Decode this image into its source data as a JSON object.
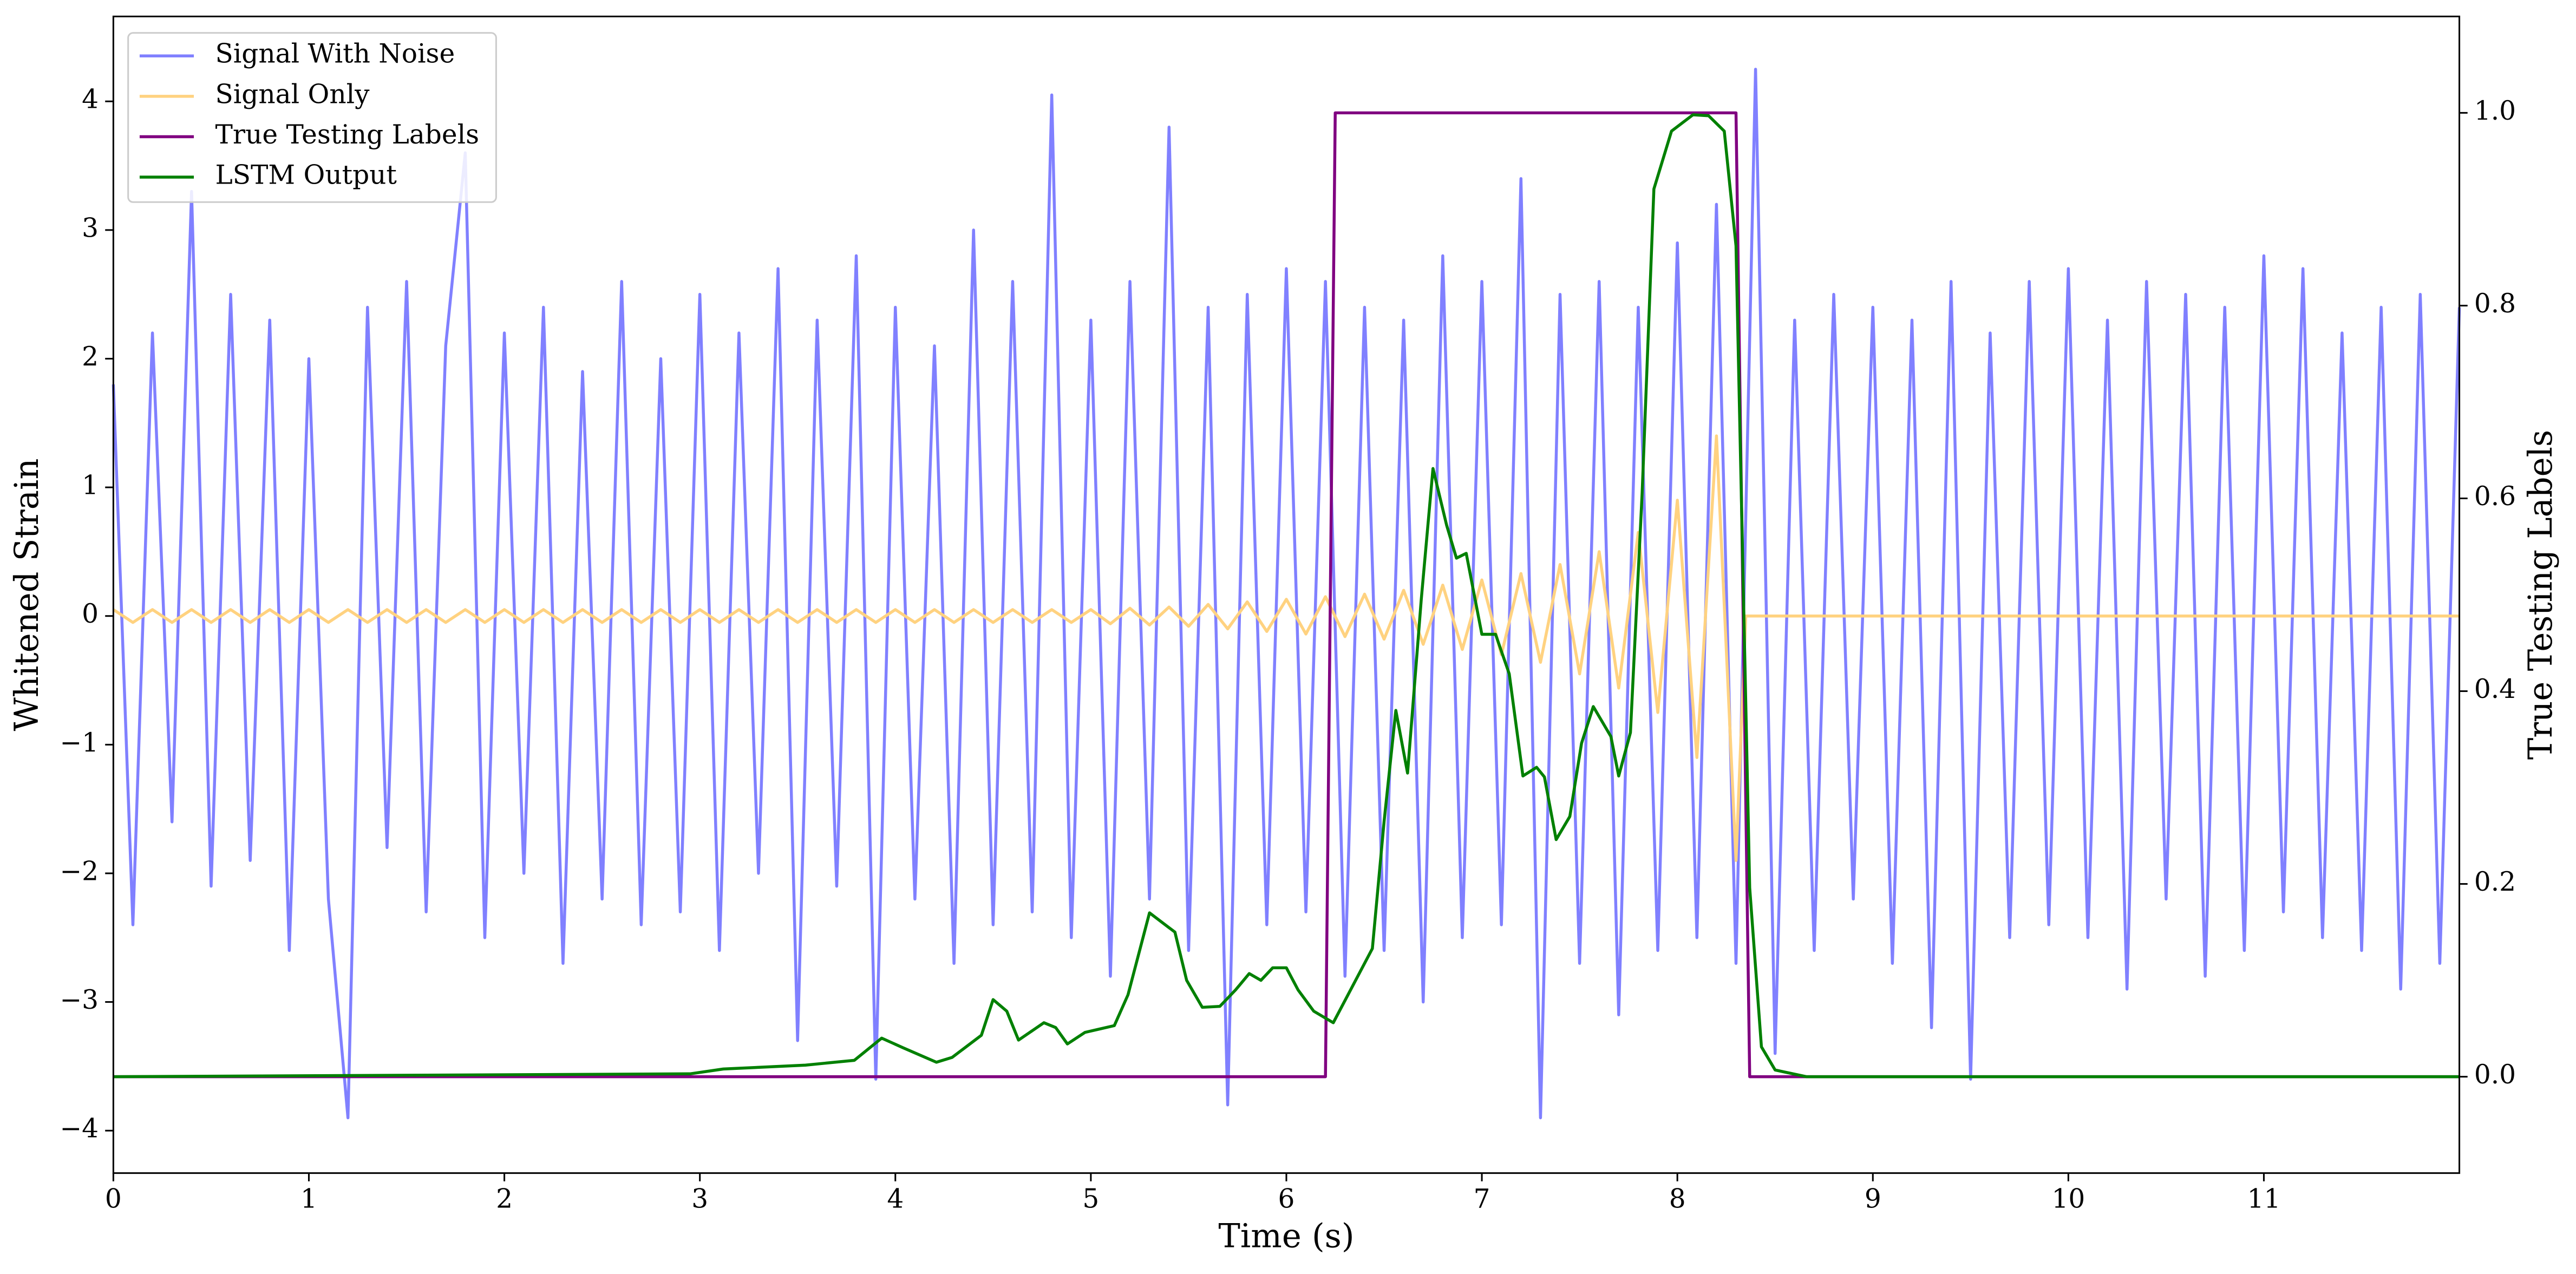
{
  "chart_data": {
    "type": "line",
    "xlabel": "Time (s)",
    "ylabel": "Whitened Strain",
    "y2label": "True Testing Labels",
    "xlim": [
      0,
      12
    ],
    "xticks": [
      0,
      1,
      2,
      3,
      4,
      5,
      6,
      7,
      8,
      9,
      10,
      11
    ],
    "ylim": [
      -4.33,
      4.66
    ],
    "yticks": [
      {
        "value": -4,
        "label": "−4"
      },
      {
        "value": -3,
        "label": "−3"
      },
      {
        "value": -2,
        "label": "−2"
      },
      {
        "value": -1,
        "label": "−1"
      },
      0,
      1,
      2,
      3,
      4
    ],
    "y2lim": [
      -0.1,
      1.1
    ],
    "y2ticks": [
      {
        "value": 0,
        "label": "0.0"
      },
      0.2,
      0.4,
      0.6,
      0.8,
      {
        "value": 1,
        "label": "1.0"
      }
    ],
    "legend": "upper-left",
    "series": [
      {
        "name": "Signal With Noise",
        "color": "#8080ff",
        "x": [
          0,
          0.1,
          0.2,
          0.3,
          0.4,
          0.5,
          0.6,
          0.7,
          0.8,
          0.9,
          1,
          1.1,
          1.2,
          1.3,
          1.4,
          1.5,
          1.6,
          1.7,
          1.8,
          1.9,
          2,
          2.1,
          2.2,
          2.3,
          2.4,
          2.5,
          2.6,
          2.7,
          2.8,
          2.9,
          3,
          3.1,
          3.2,
          3.3,
          3.4,
          3.5,
          3.6,
          3.7,
          3.8,
          3.9,
          4,
          4.1,
          4.2,
          4.3,
          4.4,
          4.5,
          4.6,
          4.7,
          4.8,
          4.9,
          5,
          5.1,
          5.2,
          5.3,
          5.4,
          5.5,
          5.6,
          5.7,
          5.8,
          5.9,
          6,
          6.1,
          6.2,
          6.3,
          6.4,
          6.5,
          6.6,
          6.7,
          6.8,
          6.9,
          7,
          7.1,
          7.2,
          7.3,
          7.4,
          7.5,
          7.6,
          7.7,
          7.8,
          7.9,
          8,
          8.1,
          8.2,
          8.3,
          8.4,
          8.5,
          8.6,
          8.7,
          8.8,
          8.9,
          9,
          9.1,
          9.2,
          9.3,
          9.4,
          9.5,
          9.6,
          9.7,
          9.8,
          9.9,
          10,
          10.1,
          10.2,
          10.3,
          10.4,
          10.5,
          10.6,
          10.7,
          10.8,
          10.9,
          11,
          11.1,
          11.2,
          11.3,
          11.4,
          11.5,
          11.6,
          11.7,
          11.8,
          11.9,
          12
        ],
        "values": [
          1.8,
          -2.4,
          2.2,
          -1.6,
          3.3,
          -2.1,
          2.5,
          -1.9,
          2.3,
          -2.6,
          2.0,
          -2.2,
          -3.9,
          2.4,
          -1.8,
          2.6,
          -2.3,
          2.1,
          3.6,
          -2.5,
          2.2,
          -2.0,
          2.4,
          -2.7,
          1.9,
          -2.2,
          2.6,
          -2.4,
          2.0,
          -2.3,
          2.5,
          -2.6,
          2.2,
          -2.0,
          2.7,
          -3.3,
          2.3,
          -2.1,
          2.8,
          -3.6,
          2.4,
          -2.2,
          2.1,
          -2.7,
          3.0,
          -2.4,
          2.6,
          -2.3,
          4.05,
          -2.5,
          2.3,
          -2.8,
          2.6,
          -2.2,
          3.8,
          -2.6,
          2.4,
          -3.8,
          2.5,
          -2.4,
          2.7,
          -2.3,
          2.6,
          -2.8,
          2.4,
          -2.6,
          2.3,
          -3.0,
          2.8,
          -2.5,
          2.6,
          -2.4,
          3.4,
          -3.9,
          2.5,
          -2.7,
          2.6,
          -3.1,
          2.4,
          -2.6,
          2.9,
          -2.5,
          3.2,
          -2.7,
          4.25,
          -3.4,
          2.3,
          -2.6,
          2.5,
          -2.2,
          2.4,
          -2.7,
          2.3,
          -3.2,
          2.6,
          -3.6,
          2.2,
          -2.5,
          2.6,
          -2.4,
          2.7,
          -2.5,
          2.3,
          -2.9,
          2.6,
          -2.2,
          2.5,
          -2.8,
          2.4,
          -2.6,
          2.8,
          -2.3,
          2.7,
          -2.5,
          2.2,
          -2.6,
          2.4,
          -2.9,
          2.5,
          -2.7,
          2.4
        ]
      },
      {
        "name": "Signal Only",
        "color": "#ffd280",
        "x": [
          0,
          0.1,
          0.2,
          0.3,
          0.4,
          0.5,
          0.6,
          0.7,
          0.8,
          0.9,
          1,
          1.1,
          1.2,
          1.3,
          1.4,
          1.5,
          1.6,
          1.7,
          1.8,
          1.9,
          2,
          2.1,
          2.2,
          2.3,
          2.4,
          2.5,
          2.6,
          2.7,
          2.8,
          2.9,
          3,
          3.1,
          3.2,
          3.3,
          3.4,
          3.5,
          3.6,
          3.7,
          3.8,
          3.9,
          4,
          4.1,
          4.2,
          4.3,
          4.4,
          4.5,
          4.6,
          4.7,
          4.8,
          4.9,
          5,
          5.1,
          5.2,
          5.3,
          5.4,
          5.5,
          5.6,
          5.7,
          5.8,
          5.9,
          6,
          6.1,
          6.2,
          6.3,
          6.4,
          6.5,
          6.6,
          6.7,
          6.8,
          6.9,
          7,
          7.1,
          7.2,
          7.3,
          7.4,
          7.5,
          7.6,
          7.7,
          7.8,
          7.9,
          8,
          8.1,
          8.2,
          8.3,
          8.35,
          12
        ],
        "values": [
          0.05,
          -0.05,
          0.05,
          -0.05,
          0.05,
          -0.05,
          0.05,
          -0.05,
          0.05,
          -0.05,
          0.05,
          -0.05,
          0.05,
          -0.05,
          0.05,
          -0.05,
          0.05,
          -0.05,
          0.05,
          -0.05,
          0.05,
          -0.05,
          0.05,
          -0.05,
          0.05,
          -0.05,
          0.05,
          -0.05,
          0.05,
          -0.05,
          0.05,
          -0.05,
          0.05,
          -0.05,
          0.05,
          -0.05,
          0.05,
          -0.05,
          0.05,
          -0.05,
          0.05,
          -0.05,
          0.05,
          -0.05,
          0.05,
          -0.05,
          0.05,
          -0.05,
          0.05,
          -0.05,
          0.05,
          -0.06,
          0.06,
          -0.07,
          0.07,
          -0.08,
          0.09,
          -0.1,
          0.11,
          -0.12,
          0.13,
          -0.14,
          0.15,
          -0.16,
          0.17,
          -0.18,
          0.2,
          -0.22,
          0.24,
          -0.26,
          0.28,
          -0.3,
          0.33,
          -0.36,
          0.4,
          -0.45,
          0.5,
          -0.56,
          0.65,
          -0.75,
          0.9,
          -1.1,
          1.4,
          -1.9,
          0,
          0
        ]
      },
      {
        "name": "True Testing Labels",
        "color": "#800080",
        "axis": "y2",
        "x": [
          0,
          6.2,
          6.25,
          8.3,
          8.37,
          12
        ],
        "values": [
          0,
          0,
          1,
          1,
          0,
          0
        ]
      },
      {
        "name": "LSTM Output",
        "color": "#008000",
        "axis": "y2",
        "x": [
          0,
          2.95,
          3.12,
          3.54,
          3.79,
          3.93,
          4.04,
          4.21,
          4.29,
          4.44,
          4.5,
          4.57,
          4.63,
          4.76,
          4.82,
          4.88,
          4.97,
          5.12,
          5.19,
          5.3,
          5.43,
          5.49,
          5.57,
          5.66,
          5.74,
          5.81,
          5.87,
          5.93,
          6.0,
          6.06,
          6.14,
          6.24,
          6.44,
          6.5,
          6.56,
          6.62,
          6.69,
          6.75,
          6.82,
          6.87,
          6.92,
          7.0,
          7.07,
          7.14,
          7.21,
          7.28,
          7.32,
          7.38,
          7.45,
          7.51,
          7.57,
          7.66,
          7.7,
          7.76,
          7.82,
          7.88,
          7.97,
          8.08,
          8.16,
          8.24,
          8.3,
          8.37,
          8.43,
          8.5,
          8.66,
          12
        ],
        "values": [
          0,
          0.003,
          0.008,
          0.012,
          0.017,
          0.04,
          0.03,
          0.015,
          0.02,
          0.043,
          0.08,
          0.068,
          0.038,
          0.056,
          0.051,
          0.034,
          0.046,
          0.053,
          0.085,
          0.17,
          0.15,
          0.1,
          0.072,
          0.073,
          0.09,
          0.107,
          0.1,
          0.113,
          0.113,
          0.09,
          0.068,
          0.056,
          0.133,
          0.265,
          0.38,
          0.315,
          0.495,
          0.631,
          0.572,
          0.538,
          0.543,
          0.459,
          0.459,
          0.418,
          0.312,
          0.321,
          0.311,
          0.246,
          0.27,
          0.346,
          0.384,
          0.353,
          0.312,
          0.357,
          0.606,
          0.921,
          0.981,
          0.998,
          0.997,
          0.981,
          0.862,
          0.196,
          0.031,
          0.007,
          0,
          0
        ]
      }
    ]
  }
}
